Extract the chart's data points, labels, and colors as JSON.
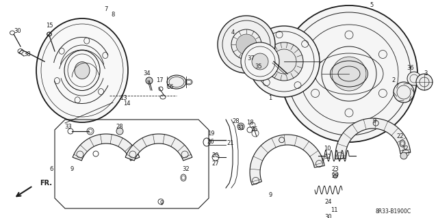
{
  "background_color": "#ffffff",
  "line_color": "#1a1a1a",
  "diagram_code": "8R33-B1900C",
  "fig_width": 6.4,
  "fig_height": 3.19,
  "dpi": 100
}
